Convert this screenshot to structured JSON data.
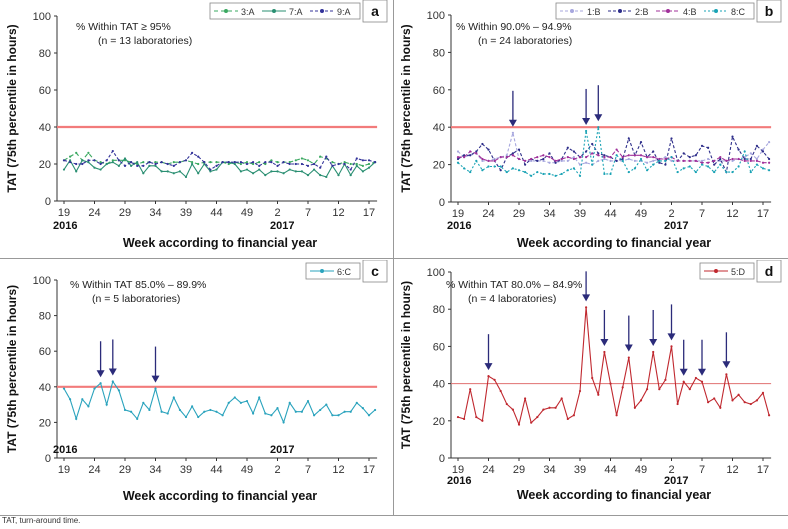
{
  "caption": "TAT, turn-around time.",
  "chart_data": [
    {
      "type": "line",
      "panel_label": "a",
      "annotation": [
        "% Within TAT ≥ 95%",
        "(n = 13 laboratories)"
      ],
      "ylabel": "TAT (75th percentile in hours)",
      "xlabel": "Week according to financial year",
      "ylim": [
        0,
        100
      ],
      "yticks": [
        0,
        20,
        40,
        60,
        80,
        100
      ],
      "xticks": [
        "19",
        "24",
        "29",
        "34",
        "39",
        "44",
        "49",
        "2",
        "7",
        "12",
        "17"
      ],
      "year_labels": [
        "2016",
        "2017"
      ],
      "threshold": 40,
      "arrows_at_index": [],
      "series": [
        {
          "name": "3:A",
          "color": "#3aa860",
          "dash": "4,3",
          "values": [
            22,
            24,
            26,
            22,
            26,
            22,
            21,
            20,
            22,
            22,
            22,
            21,
            20,
            21,
            21,
            21,
            21,
            20,
            21,
            21,
            22,
            21,
            20,
            21,
            21,
            21,
            21,
            20,
            21,
            20,
            21,
            20,
            21,
            20,
            22,
            21,
            21,
            21,
            22,
            23,
            22,
            20,
            24,
            23,
            21,
            20,
            21,
            20,
            20,
            19,
            20,
            21
          ]
        },
        {
          "name": "7:A",
          "color": "#2a8f72",
          "dash": "",
          "values": [
            17,
            22,
            16,
            22,
            21,
            18,
            17,
            20,
            21,
            19,
            23,
            19,
            21,
            15,
            19,
            19,
            16,
            16,
            15,
            16,
            13,
            20,
            15,
            20,
            16,
            17,
            21,
            21,
            20,
            16,
            17,
            15,
            17,
            14,
            16,
            16,
            15,
            17,
            16,
            16,
            14,
            17,
            14,
            13,
            19,
            14,
            20,
            14,
            19,
            16,
            18,
            21
          ]
        },
        {
          "name": "9:A",
          "color": "#33339a",
          "dash": "3,2",
          "values": [
            22,
            21,
            20,
            20,
            22,
            22,
            20,
            22,
            27,
            22,
            19,
            21,
            19,
            19,
            21,
            20,
            21,
            20,
            19,
            21,
            22,
            26,
            24,
            21,
            17,
            19,
            21,
            21,
            21,
            21,
            20,
            21,
            19,
            21,
            21,
            19,
            21,
            20,
            20,
            20,
            19,
            20,
            18,
            24,
            19,
            20,
            20,
            17,
            23,
            22,
            22,
            21
          ]
        }
      ]
    },
    {
      "type": "line",
      "panel_label": "b",
      "annotation": [
        "% Within 90.0% – 94.9%",
        "(n = 24 laboratories)"
      ],
      "ylabel": "TAT (75th percentile in hours)",
      "xlabel": "Week according to financial year",
      "ylim": [
        0,
        100
      ],
      "yticks": [
        0,
        20,
        40,
        60,
        80,
        100
      ],
      "xticks": [
        "19",
        "24",
        "29",
        "34",
        "39",
        "44",
        "49",
        "2",
        "7",
        "12",
        "17"
      ],
      "year_labels": [
        "2016",
        "2017"
      ],
      "threshold": 40,
      "arrows_at_index": [
        9,
        21,
        23
      ],
      "series": [
        {
          "name": "1:B",
          "color": "#a7a7de",
          "dash": "3,2",
          "values": [
            27,
            24,
            25,
            26,
            22,
            22,
            23,
            24,
            25,
            37,
            23,
            22,
            22,
            22,
            22,
            21,
            21,
            22,
            22,
            24,
            20,
            21,
            20,
            22,
            23,
            22,
            22,
            22,
            23,
            22,
            22,
            21,
            22,
            23,
            24,
            22,
            22,
            22,
            22,
            22,
            22,
            23,
            22,
            22,
            22,
            22,
            23,
            24,
            26,
            23,
            28,
            32
          ]
        },
        {
          "name": "2:B",
          "color": "#2e2e8a",
          "dash": "3,2",
          "values": [
            23,
            25,
            25,
            27,
            31,
            28,
            22,
            17,
            24,
            26,
            28,
            20,
            23,
            22,
            23,
            26,
            21,
            23,
            29,
            27,
            24,
            27,
            31,
            26,
            25,
            24,
            22,
            23,
            34,
            25,
            32,
            24,
            27,
            21,
            20,
            34,
            22,
            26,
            24,
            25,
            30,
            29,
            20,
            23,
            16,
            35,
            28,
            23,
            23,
            30,
            27,
            23
          ]
        },
        {
          "name": "4:B",
          "color": "#a0309a",
          "dash": "4,2",
          "values": [
            24,
            24,
            27,
            26,
            23,
            22,
            22,
            24,
            24,
            25,
            23,
            22,
            23,
            24,
            25,
            24,
            22,
            23,
            24,
            23,
            24,
            24,
            26,
            25,
            24,
            24,
            28,
            24,
            25,
            25,
            25,
            24,
            24,
            23,
            23,
            24,
            22,
            22,
            22,
            22,
            21,
            21,
            22,
            24,
            22,
            23,
            23,
            22,
            22,
            22,
            21,
            21
          ]
        },
        {
          "name": "8:C",
          "color": "#1aa3b5",
          "dash": "2,2",
          "values": [
            21,
            18,
            16,
            22,
            17,
            19,
            19,
            19,
            16,
            18,
            17,
            16,
            14,
            16,
            15,
            15,
            14,
            15,
            17,
            18,
            14,
            38,
            20,
            40,
            15,
            15,
            25,
            22,
            16,
            18,
            23,
            17,
            20,
            22,
            22,
            24,
            16,
            18,
            19,
            16,
            20,
            19,
            16,
            20,
            16,
            16,
            19,
            27,
            16,
            20,
            18,
            17
          ]
        }
      ]
    },
    {
      "type": "line",
      "panel_label": "c",
      "annotation": [
        "% Within TAT 85.0% – 89.9%",
        "(n = 5 laboratories)"
      ],
      "ylabel": "TAT (75th percentile in hours)",
      "xlabel": "Week according to financial year",
      "ylim": [
        0,
        100
      ],
      "yticks": [
        0,
        20,
        40,
        60,
        80,
        100
      ],
      "xticks": [
        "19",
        "24",
        "29",
        "34",
        "39",
        "44",
        "49",
        "2",
        "7",
        "12",
        "17"
      ],
      "year_labels": [
        "2016",
        "2017"
      ],
      "threshold": 40,
      "arrows_at_index": [
        6,
        8,
        15
      ],
      "series": [
        {
          "name": "6:C",
          "color": "#2aa3bd",
          "dash": "",
          "values": [
            39,
            33,
            22,
            33,
            29,
            39,
            42,
            30,
            43,
            38,
            27,
            26,
            22,
            31,
            27,
            39,
            26,
            25,
            34,
            27,
            23,
            29,
            23,
            26,
            27,
            26,
            24,
            31,
            34,
            31,
            32,
            25,
            34,
            25,
            24,
            28,
            20,
            31,
            26,
            26,
            32,
            24,
            27,
            30,
            24,
            24,
            26,
            26,
            31,
            28,
            24,
            27
          ]
        }
      ]
    },
    {
      "type": "line",
      "panel_label": "d",
      "annotation": [
        "% Within TAT 80.0% – 84.9%",
        "(n = 4 laboratories)"
      ],
      "ylabel": "TAT (75th percentile in hours)",
      "xlabel": "Week according to financial year",
      "ylim": [
        0,
        100
      ],
      "yticks": [
        0,
        20,
        40,
        60,
        80,
        100
      ],
      "xticks": [
        "19",
        "24",
        "29",
        "34",
        "39",
        "44",
        "49",
        "2",
        "7",
        "12",
        "17"
      ],
      "year_labels": [
        "2016",
        "2017"
      ],
      "threshold": 40,
      "arrows_at_index": [
        5,
        21,
        24,
        28,
        32,
        35,
        37,
        40,
        44
      ],
      "series": [
        {
          "name": "5:D",
          "color": "#c0282f",
          "dash": "",
          "values": [
            22,
            21,
            37,
            22,
            20,
            44,
            42,
            36,
            29,
            26,
            18,
            32,
            19,
            22,
            26,
            27,
            27,
            32,
            21,
            23,
            36,
            81,
            43,
            34,
            57,
            40,
            23,
            38,
            54,
            27,
            31,
            37,
            57,
            37,
            42,
            60,
            29,
            41,
            37,
            43,
            41,
            30,
            32,
            27,
            45,
            31,
            34,
            30,
            29,
            31,
            35,
            23
          ]
        }
      ]
    }
  ]
}
